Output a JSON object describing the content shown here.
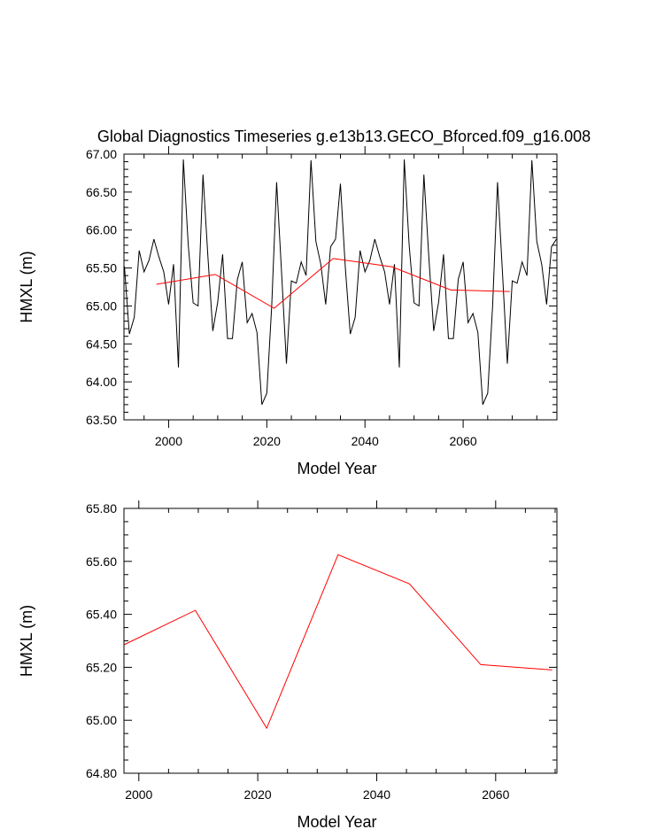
{
  "chart_data": [
    {
      "type": "line",
      "title": "Global Diagnostics Timeseries g.e13b13.GECO_Bforced.f09_g16.008",
      "xlabel": "Model Year",
      "ylabel": "HMXL (m)",
      "xlim": [
        1990.9,
        2079.1
      ],
      "ylim": [
        63.5,
        67.0
      ],
      "yticks": [
        "63.50",
        "64.00",
        "64.50",
        "65.00",
        "65.50",
        "66.00",
        "66.50",
        "67.00"
      ],
      "xticks": [
        "2000",
        "2020",
        "2040",
        "2060"
      ],
      "series": [
        {
          "color": "#000000",
          "x": [
            1991,
            1992,
            1993,
            1994,
            1995,
            1996,
            1997,
            1998,
            1999,
            2000,
            2001,
            2002,
            2003,
            2004,
            2005,
            2006,
            2007,
            2008,
            2009,
            2010,
            2011,
            2012,
            2013,
            2014,
            2015,
            2016,
            2017,
            2018,
            2019,
            2020,
            2021,
            2022,
            2023,
            2024,
            2025,
            2026,
            2027,
            2028,
            2029,
            2030,
            2031,
            2032,
            2033,
            2034,
            2035,
            2036,
            2037,
            2038,
            2039,
            2040,
            2041,
            2042,
            2043,
            2044,
            2045,
            2046,
            2047,
            2048,
            2049,
            2050,
            2051,
            2052,
            2053,
            2054,
            2055,
            2056,
            2057,
            2058,
            2059,
            2060,
            2061,
            2062,
            2063,
            2064,
            2065,
            2066,
            2067,
            2068,
            2069,
            2070,
            2071,
            2072,
            2073,
            2074,
            2075,
            2076,
            2077,
            2078,
            2079
          ],
          "y": [
            65.52,
            64.63,
            64.85,
            65.73,
            65.45,
            65.6,
            65.88,
            65.65,
            65.45,
            65.02,
            65.55,
            64.19,
            66.93,
            65.8,
            65.04,
            65.0,
            66.73,
            65.65,
            64.67,
            65.05,
            65.68,
            64.57,
            64.57,
            65.35,
            65.58,
            64.78,
            64.9,
            64.65,
            63.7,
            63.85,
            65.0,
            66.63,
            65.45,
            64.24,
            65.33,
            65.3,
            65.58,
            65.4,
            66.92,
            65.85,
            65.55,
            65.02,
            65.78,
            65.88,
            66.61,
            65.5,
            64.63,
            64.85,
            65.73,
            65.45,
            65.6,
            65.88,
            65.65,
            65.45,
            65.02,
            65.55,
            64.19,
            66.93,
            65.8,
            65.04,
            65.0,
            66.73,
            65.65,
            64.67,
            65.05,
            65.68,
            64.57,
            64.57,
            65.35,
            65.58,
            64.78,
            64.9,
            64.65,
            63.7,
            63.85,
            65.0,
            66.63,
            65.45,
            64.24,
            65.33,
            65.3,
            65.58,
            65.4,
            66.92,
            65.85,
            65.55,
            65.02,
            65.78,
            65.88
          ]
        },
        {
          "color": "#ff0000",
          "x": [
            1997.5,
            2009.5,
            2021.5,
            2033.5,
            2045.5,
            2057.5,
            2069.5
          ],
          "y": [
            65.285,
            65.415,
            64.97,
            65.625,
            65.515,
            65.21,
            65.19
          ]
        }
      ]
    },
    {
      "type": "line",
      "title": "",
      "xlabel": "Model Year",
      "ylabel": "HMXL (m)",
      "xlim": [
        1997.5,
        2070.3
      ],
      "ylim": [
        64.8,
        65.8
      ],
      "yticks": [
        "64.80",
        "65.00",
        "65.20",
        "65.40",
        "65.60",
        "65.80"
      ],
      "xticks": [
        "2000",
        "2020",
        "2040",
        "2060"
      ],
      "series": [
        {
          "color": "#ff0000",
          "x": [
            1997.5,
            2009.5,
            2021.5,
            2033.5,
            2045.5,
            2057.5,
            2069.5
          ],
          "y": [
            65.285,
            65.415,
            64.97,
            65.625,
            65.515,
            65.21,
            65.19
          ]
        }
      ]
    }
  ]
}
